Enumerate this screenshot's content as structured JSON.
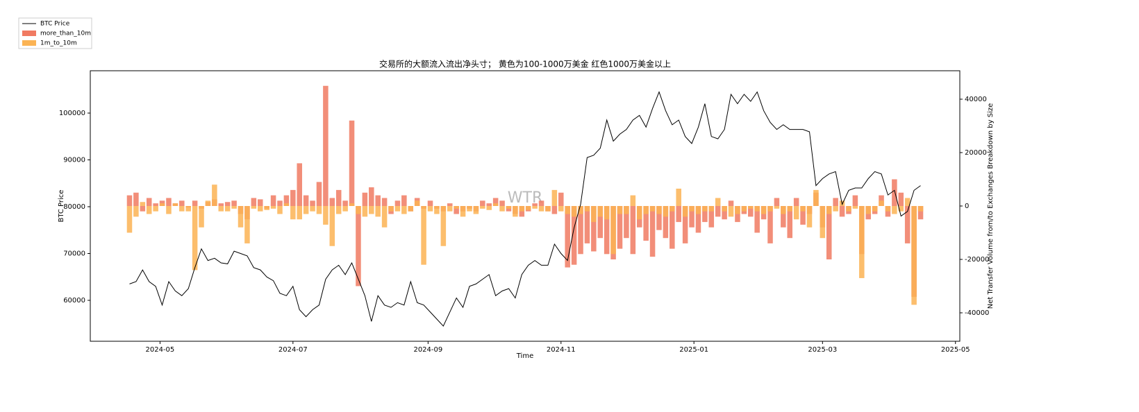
{
  "chart_data": {
    "type": "bar-line",
    "title": "交易所的大额流入流出净头寸； 黄色为100-1000万美金 红色1000万美金以上",
    "xlabel": "Time",
    "ylabel": "BTC Price",
    "y2label": "Net Transfer Volume from/to Exchanges Breakdown by Size",
    "watermark": "WTR",
    "legend": "top-left",
    "xlim": [
      "2024-03-30",
      "2025-05-03"
    ],
    "xticks": [
      {
        "value": "2024-05",
        "label": "2024-05"
      },
      {
        "value": "2024-07",
        "label": "2024-07"
      },
      {
        "value": "2024-09",
        "label": "2024-09"
      },
      {
        "value": "2024-11",
        "label": "2024-11"
      },
      {
        "value": "2025-01",
        "label": "2025-01"
      },
      {
        "value": "2025-03",
        "label": "2025-03"
      },
      {
        "value": "2025-05",
        "label": "2025-05"
      }
    ],
    "ylim": [
      51260,
      109040
    ],
    "yticks": [
      60000,
      70000,
      80000,
      90000,
      100000
    ],
    "y2lim": [
      -50650,
      50650
    ],
    "y2ticks": [
      -40000,
      -20000,
      0,
      20000,
      40000
    ],
    "x": [
      "2024-04-17",
      "2024-04-20",
      "2024-04-23",
      "2024-04-26",
      "2024-04-29",
      "2024-05-02",
      "2024-05-05",
      "2024-05-08",
      "2024-05-11",
      "2024-05-14",
      "2024-05-17",
      "2024-05-20",
      "2024-05-23",
      "2024-05-26",
      "2024-05-29",
      "2024-06-01",
      "2024-06-04",
      "2024-06-07",
      "2024-06-10",
      "2024-06-13",
      "2024-06-16",
      "2024-06-19",
      "2024-06-22",
      "2024-06-25",
      "2024-06-28",
      "2024-07-01",
      "2024-07-04",
      "2024-07-07",
      "2024-07-10",
      "2024-07-13",
      "2024-07-16",
      "2024-07-19",
      "2024-07-22",
      "2024-07-25",
      "2024-07-28",
      "2024-07-31",
      "2024-08-03",
      "2024-08-06",
      "2024-08-09",
      "2024-08-12",
      "2024-08-15",
      "2024-08-18",
      "2024-08-21",
      "2024-08-24",
      "2024-08-27",
      "2024-08-30",
      "2024-09-02",
      "2024-09-05",
      "2024-09-08",
      "2024-09-11",
      "2024-09-14",
      "2024-09-17",
      "2024-09-20",
      "2024-09-23",
      "2024-09-26",
      "2024-09-29",
      "2024-10-02",
      "2024-10-05",
      "2024-10-08",
      "2024-10-11",
      "2024-10-14",
      "2024-10-17",
      "2024-10-20",
      "2024-10-23",
      "2024-10-26",
      "2024-10-29",
      "2024-11-01",
      "2024-11-04",
      "2024-11-07",
      "2024-11-10",
      "2024-11-13",
      "2024-11-16",
      "2024-11-19",
      "2024-11-22",
      "2024-11-25",
      "2024-11-28",
      "2024-12-01",
      "2024-12-04",
      "2024-12-07",
      "2024-12-10",
      "2024-12-13",
      "2024-12-16",
      "2024-12-19",
      "2024-12-22",
      "2024-12-25",
      "2024-12-28",
      "2024-12-31",
      "2025-01-03",
      "2025-01-06",
      "2025-01-09",
      "2025-01-12",
      "2025-01-15",
      "2025-01-18",
      "2025-01-21",
      "2025-01-24",
      "2025-01-27",
      "2025-01-30",
      "2025-02-02",
      "2025-02-05",
      "2025-02-08",
      "2025-02-11",
      "2025-02-14",
      "2025-02-17",
      "2025-02-20",
      "2025-02-23",
      "2025-02-26",
      "2025-03-01",
      "2025-03-04",
      "2025-03-07",
      "2025-03-10",
      "2025-03-13",
      "2025-03-16",
      "2025-03-19",
      "2025-03-22",
      "2025-03-25",
      "2025-03-28",
      "2025-03-31",
      "2025-04-03",
      "2025-04-06",
      "2025-04-09",
      "2025-04-12",
      "2025-04-15"
    ],
    "series": [
      {
        "name": "BTC Price",
        "kind": "line",
        "axis": "y",
        "color": "#000000",
        "values": [
          63500,
          64000,
          66500,
          64000,
          63000,
          59000,
          64000,
          62000,
          61000,
          62500,
          67000,
          71000,
          68500,
          69000,
          68000,
          67800,
          70500,
          70000,
          69500,
          67000,
          66500,
          65000,
          64200,
          61500,
          61000,
          63000,
          58000,
          56500,
          58000,
          59000,
          64500,
          66500,
          67500,
          65500,
          68000,
          64500,
          61000,
          55500,
          61000,
          59000,
          58500,
          59500,
          59000,
          64000,
          59500,
          59000,
          57500,
          56000,
          54500,
          57500,
          60500,
          58500,
          63000,
          63500,
          64500,
          65500,
          61000,
          62000,
          62500,
          60500,
          65500,
          67500,
          68500,
          67500,
          67500,
          72000,
          70000,
          68500,
          75500,
          80500,
          90500,
          91000,
          92500,
          98500,
          94000,
          95500,
          96500,
          98500,
          99500,
          97000,
          101000,
          104500,
          100500,
          97500,
          98500,
          95000,
          93500,
          97000,
          102000,
          95000,
          94500,
          96500,
          104000,
          102000,
          104000,
          102500,
          104500,
          100500,
          98000,
          96500,
          97500,
          96500,
          96500,
          96500,
          96000,
          84500,
          86000,
          87000,
          87500,
          80500,
          83500,
          84000,
          84000,
          86000,
          87500,
          87000,
          82500,
          83500,
          78000,
          79000,
          83500,
          84500
        ]
      },
      {
        "name": "more_than_10m",
        "kind": "bar",
        "axis": "y2",
        "color": "#f07a62",
        "values": [
          4000,
          5000,
          -2000,
          3000,
          1000,
          2000,
          3000,
          1000,
          2000,
          -500,
          2000,
          -1000,
          1500,
          2500,
          1000,
          1500,
          2000,
          -3000,
          -5000,
          3000,
          2500,
          -1000,
          4000,
          2000,
          4000,
          6000,
          16000,
          4000,
          2000,
          9000,
          45000,
          3000,
          6000,
          2000,
          32000,
          -30000,
          5000,
          7000,
          4000,
          3000,
          -3000,
          2000,
          4000,
          -2000,
          3000,
          -1000,
          2000,
          -1000,
          -2000,
          1000,
          -3000,
          -2000,
          -1000,
          -2000,
          2000,
          1000,
          3000,
          2000,
          -2000,
          -3000,
          -4000,
          -2000,
          1000,
          2000,
          -2000,
          -3000,
          5000,
          -23000,
          -22000,
          -18000,
          -14000,
          -17000,
          -12000,
          -18000,
          -20000,
          -16000,
          -12000,
          -18000,
          -8000,
          -13000,
          -19000,
          -9000,
          -12000,
          -16000,
          -6000,
          -14000,
          -8000,
          -10000,
          -6000,
          -8000,
          -4000,
          -5000,
          2000,
          -6000,
          -3000,
          -4000,
          -10000,
          -5000,
          -14000,
          3000,
          -8000,
          -12000,
          3000,
          -7000,
          -3000,
          5000,
          -8000,
          -20000,
          3000,
          -4000,
          -3000,
          4000,
          -18000,
          -5000,
          -3000,
          4000,
          -4000,
          10000,
          5000,
          -14000,
          -34000,
          -5000
        ]
      },
      {
        "name": "1m_to_10m",
        "kind": "bar",
        "axis": "y2",
        "color": "#fbb354",
        "values": [
          -10000,
          -4000,
          1500,
          -3000,
          -2000,
          1000,
          -3000,
          1000,
          -2000,
          -2000,
          -24000,
          -8000,
          2000,
          8000,
          -2000,
          -2000,
          -1000,
          -8000,
          -14000,
          -1000,
          -2000,
          -1500,
          -1000,
          -3000,
          1000,
          -5000,
          -5000,
          -3000,
          -2000,
          -3000,
          -7000,
          -15000,
          -3000,
          -2000,
          1000,
          -3000,
          -4000,
          -3000,
          -4000,
          -8000,
          -2000,
          -2000,
          -3000,
          -2000,
          2000,
          -22000,
          -2000,
          -3000,
          -15000,
          -2000,
          -1000,
          -4000,
          -2000,
          -3000,
          -1000,
          -1500,
          1000,
          -2000,
          -1000,
          -4000,
          -2000,
          -1500,
          -1000,
          -2000,
          -2000,
          6000,
          -2000,
          -3000,
          -4000,
          -3000,
          -2000,
          -6000,
          -4000,
          -5000,
          -18000,
          -3000,
          -3000,
          4000,
          -5000,
          -3000,
          -2000,
          -3000,
          -4000,
          -2000,
          6500,
          -4000,
          -2000,
          -3000,
          -2000,
          -2000,
          3000,
          -2000,
          -4000,
          -3000,
          -2000,
          -1000,
          -2000,
          -3000,
          -2000,
          -1000,
          -3000,
          -2000,
          -5000,
          -2000,
          -8000,
          6000,
          -12000,
          -3000,
          -2000,
          2000,
          -2000,
          -1000,
          -27000,
          -3000,
          -2000,
          2000,
          -2000,
          -3000,
          -2000,
          3000,
          -37000,
          -2000
        ]
      }
    ]
  }
}
